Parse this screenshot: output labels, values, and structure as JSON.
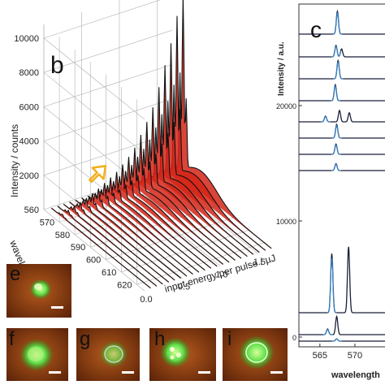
{
  "panels": {
    "b": "b",
    "c": "c",
    "e": "e",
    "f": "f",
    "g": "g",
    "h": "h",
    "i": "i"
  },
  "colors": {
    "trace_red": "#d42418",
    "trace_black": "#111111",
    "panel_c_trace": "#1a1f3a",
    "panel_c_fit": "#2f8ad8",
    "arrow": "#f2b01e",
    "micro_bg": "#8a3a10",
    "micro_glow": "#5ee04a"
  },
  "chart_data": [
    {
      "type": "line",
      "panel": "b",
      "zlabel": "Intensity / counts",
      "ylabel": "wavelength / nm",
      "xlabel": "input energy per pulse / µJ",
      "z_ticks": [
        "2000",
        "4000",
        "6000",
        "8000",
        "10000"
      ],
      "zlim": [
        0,
        10000
      ],
      "y_ticks": [
        "560",
        "570",
        "580",
        "590",
        "600",
        "610",
        "620"
      ],
      "x_ticks": [
        "0.0",
        "0.5",
        "1.0",
        "1.5"
      ],
      "xlim": [
        0,
        1.7
      ],
      "peak_wavelengths_nm": [
        566,
        568,
        570
      ],
      "series": [
        {
          "energy": 0.08,
          "peak_intensity": 150
        },
        {
          "energy": 0.16,
          "peak_intensity": 250
        },
        {
          "energy": 0.24,
          "peak_intensity": 350
        },
        {
          "energy": 0.32,
          "peak_intensity": 450
        },
        {
          "energy": 0.4,
          "peak_intensity": 600
        },
        {
          "energy": 0.48,
          "peak_intensity": 750
        },
        {
          "energy": 0.56,
          "peak_intensity": 900
        },
        {
          "energy": 0.64,
          "peak_intensity": 1100
        },
        {
          "energy": 0.72,
          "peak_intensity": 1300
        },
        {
          "energy": 0.8,
          "peak_intensity": 1500
        },
        {
          "energy": 0.88,
          "peak_intensity": 1800
        },
        {
          "energy": 0.96,
          "peak_intensity": 2100
        },
        {
          "energy": 1.04,
          "peak_intensity": 2500
        },
        {
          "energy": 1.12,
          "peak_intensity": 3100
        },
        {
          "energy": 1.2,
          "peak_intensity": 3700
        },
        {
          "energy": 1.28,
          "peak_intensity": 4400
        },
        {
          "energy": 1.36,
          "peak_intensity": 5400
        },
        {
          "energy": 1.44,
          "peak_intensity": 6500
        },
        {
          "energy": 1.52,
          "peak_intensity": 7600
        },
        {
          "energy": 1.6,
          "peak_intensity": 9000
        },
        {
          "energy": 1.68,
          "peak_intensity": 10000
        }
      ]
    },
    {
      "type": "line",
      "panel": "c",
      "ylabel": "Intensity / a.u.",
      "xlabel": "wavelength",
      "y_ticks": [
        "0",
        "10000",
        "20000"
      ],
      "x_ticks": [
        "565",
        "570"
      ],
      "xlim": [
        562,
        575
      ],
      "traces": [
        {
          "peaks": [
            [
              567.5,
              1.0
            ]
          ]
        },
        {
          "peaks": [
            [
              567.3,
              0.5
            ],
            [
              568.1,
              0.35
            ]
          ]
        },
        {
          "peaks": [
            [
              567.6,
              0.8
            ]
          ]
        },
        {
          "peaks": [
            [
              567.2,
              0.7
            ]
          ]
        },
        {
          "peaks": [
            [
              565.8,
              0.25
            ],
            [
              567.8,
              0.5
            ],
            [
              569.2,
              0.4
            ]
          ]
        },
        {
          "peaks": [
            [
              567.4,
              0.6
            ]
          ]
        },
        {
          "peaks": [
            [
              567.3,
              0.45
            ]
          ]
        },
        {
          "peaks": [
            [
              567.3,
              0.3
            ]
          ]
        },
        {
          "peaks": [
            [
              566.7,
              2.6
            ],
            [
              569.1,
              2.9
            ]
          ]
        },
        {
          "peaks": [
            [
              566.1,
              0.25
            ],
            [
              567.4,
              0.8
            ]
          ]
        },
        {
          "peaks": [
            [
              567.4,
              0.1
            ]
          ]
        }
      ]
    }
  ]
}
